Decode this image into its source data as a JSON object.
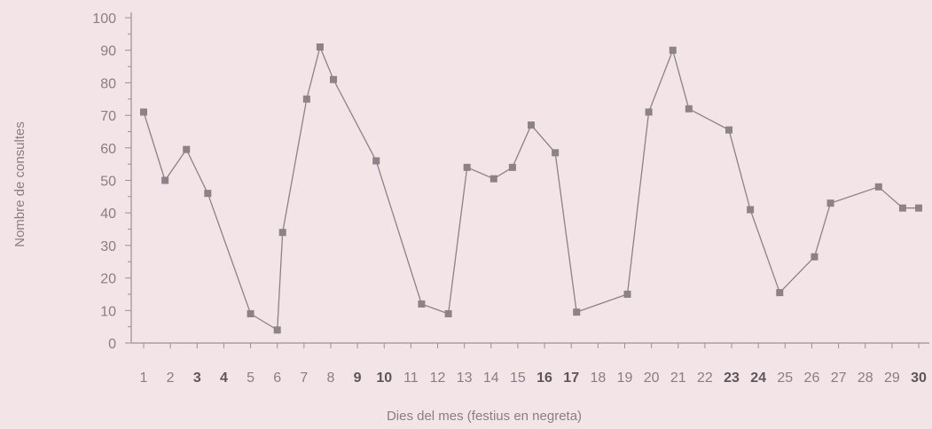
{
  "chart_data": {
    "type": "line",
    "title": "",
    "xlabel": "Dies del mes (festius en negreta)",
    "ylabel": "Nombre de consultes",
    "ylim": [
      0,
      100
    ],
    "yticks": [
      0,
      10,
      20,
      30,
      40,
      50,
      60,
      70,
      80,
      90,
      100
    ],
    "xticks": [
      {
        "label": "1",
        "bold": false
      },
      {
        "label": "2",
        "bold": false
      },
      {
        "label": "3",
        "bold": true
      },
      {
        "label": "4",
        "bold": true
      },
      {
        "label": "5",
        "bold": false
      },
      {
        "label": "6",
        "bold": false
      },
      {
        "label": "7",
        "bold": false
      },
      {
        "label": "8",
        "bold": false
      },
      {
        "label": "9",
        "bold": true
      },
      {
        "label": "10",
        "bold": true
      },
      {
        "label": "11",
        "bold": false
      },
      {
        "label": "12",
        "bold": false
      },
      {
        "label": "13",
        "bold": false
      },
      {
        "label": "14",
        "bold": false
      },
      {
        "label": "15",
        "bold": false
      },
      {
        "label": "16",
        "bold": true
      },
      {
        "label": "17",
        "bold": true
      },
      {
        "label": "18",
        "bold": false
      },
      {
        "label": "19",
        "bold": false
      },
      {
        "label": "20",
        "bold": false
      },
      {
        "label": "21",
        "bold": false
      },
      {
        "label": "22",
        "bold": false
      },
      {
        "label": "23",
        "bold": true
      },
      {
        "label": "24",
        "bold": true
      },
      {
        "label": "25",
        "bold": false
      },
      {
        "label": "26",
        "bold": false
      },
      {
        "label": "27",
        "bold": false
      },
      {
        "label": "28",
        "bold": false
      },
      {
        "label": "29",
        "bold": false
      },
      {
        "label": "30",
        "bold": true
      }
    ],
    "series": [
      {
        "x": [
          1,
          1.8,
          2.6,
          3.4,
          5.0,
          6.0,
          6.2,
          7.1,
          7.6,
          8.1,
          9.7,
          11.4,
          12.4,
          13.1,
          14.1,
          14.8,
          15.5,
          16.4,
          17.2,
          19.1,
          19.9,
          20.8,
          21.4,
          22.9,
          23.7,
          24.8,
          26.1,
          26.7,
          28.5,
          29.4,
          30.0
        ],
        "y": [
          71,
          50,
          59.5,
          46,
          9,
          4,
          34,
          75,
          91,
          81,
          56,
          12,
          9,
          54,
          50.5,
          54,
          67,
          58.5,
          9.5,
          15,
          71,
          90,
          72,
          65.5,
          41,
          15.5,
          26.5,
          43,
          48,
          41.5,
          41.5
        ]
      }
    ],
    "colors": {
      "background": "#f2e4e7",
      "line": "#8c8287",
      "marker": "#8c8287",
      "axis": "#9a9096",
      "text": "#8a7e84",
      "bold_text": "#5f555a"
    },
    "grid": false,
    "marker": "square"
  }
}
